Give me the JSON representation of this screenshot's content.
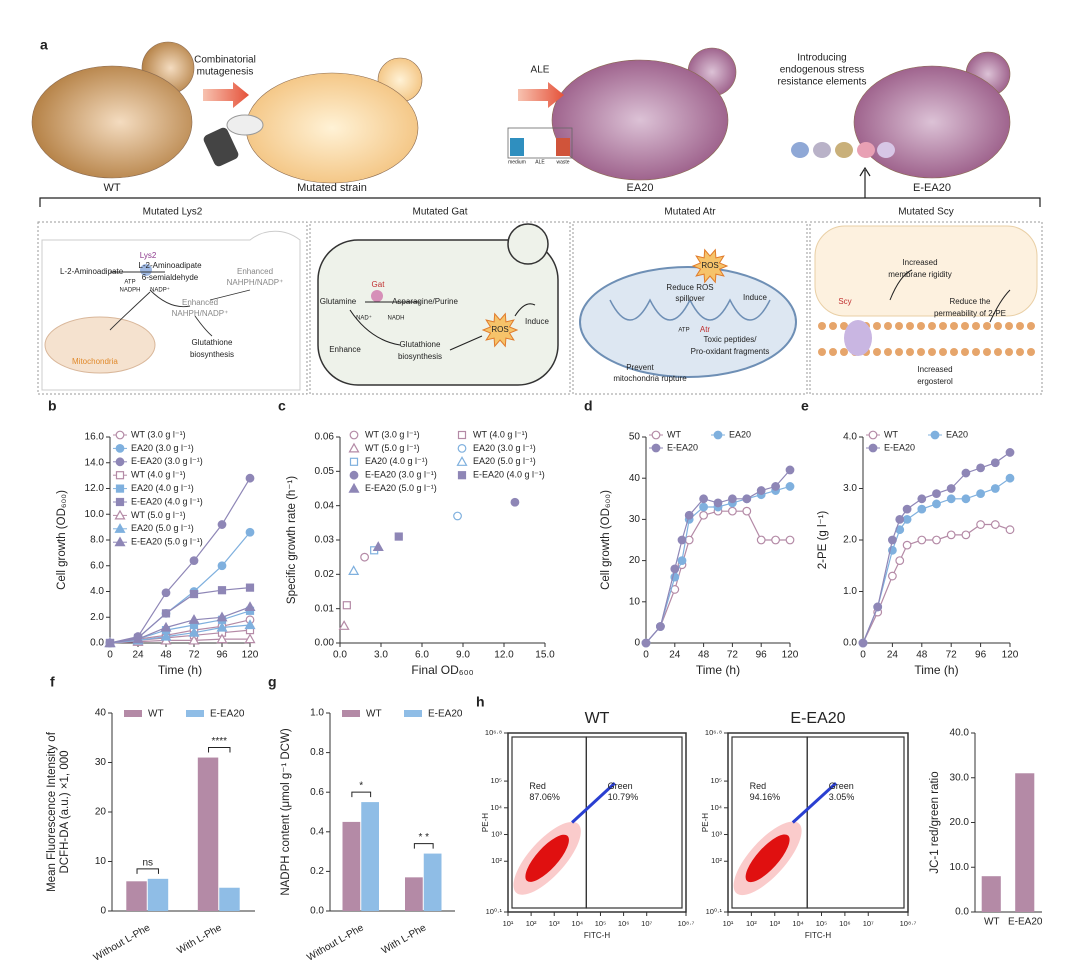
{
  "panel_a": {
    "label": "a",
    "strains": [
      "WT",
      "Mutated strain",
      "EA20",
      "E-EA20"
    ],
    "steps": [
      [
        "Combinatorial",
        "mutagenesis"
      ],
      [
        "ALE"
      ],
      [
        "Introducing",
        "endogenous stress",
        "resistance elements"
      ]
    ],
    "ale_device": [
      "medium",
      "ALE",
      "waste"
    ],
    "boxes": [
      {
        "title": "Mutated Lys2",
        "labels": [
          "Lys2",
          "L-2-Aminoadipate",
          "L-2-Aminoadipate",
          "6-semialdehyde",
          "ATP",
          "NADPH",
          "NADP⁺",
          "Enhanced",
          "NAHPH/NADP⁺",
          "Enhanced",
          "NAHPH/NADP⁺",
          "Mitochondria",
          "Glutathione",
          "biosynthesis"
        ]
      },
      {
        "title": "Mutated Gat",
        "labels": [
          "Gat",
          "Glutamine",
          "Asparagine/Purine",
          "NAD⁺",
          "NADH",
          "Enhance",
          "Glutathione",
          "biosynthesis",
          "ROS",
          "Induce"
        ]
      },
      {
        "title": "Mutated Atr",
        "labels": [
          "ROS",
          "Reduce ROS",
          "spillover",
          "Induce",
          "ATP",
          "Atr",
          "Toxic peptides/",
          "Pro-oxidant fragments",
          "Prevent",
          "mitochondria rupture"
        ]
      },
      {
        "title": "Mutated Scy",
        "labels": [
          "Scy",
          "Increased",
          "membrane rigidity",
          "Reduce the",
          "permeability of 2-PE",
          "Increased",
          "ergosterol"
        ]
      }
    ]
  },
  "chart_data": [
    {
      "type": "line",
      "panel": "b",
      "xlabel": "Time (h)",
      "ylabel": "Cell growth (OD₆₀₀)",
      "x": [
        0,
        24,
        48,
        72,
        96,
        120
      ],
      "xlim": [
        0,
        120
      ],
      "xticks": [
        0,
        24,
        48,
        72,
        96,
        120
      ],
      "ylim": [
        0,
        16
      ],
      "yticks": [
        {
          "value": 0,
          "label": "0.0"
        },
        {
          "value": 2,
          "label": "2.0"
        },
        {
          "value": 4,
          "label": "4.0"
        },
        {
          "value": 6,
          "label": "6.0"
        },
        {
          "value": 8,
          "label": "8.0"
        },
        {
          "value": 10,
          "label": "10.0"
        },
        {
          "value": 12,
          "label": "12.0"
        },
        {
          "value": 14,
          "label": "14.0"
        },
        {
          "value": 16,
          "label": "16.0"
        }
      ],
      "legend": "upper left",
      "legend_columns": 1,
      "series": [
        {
          "name": "WT (3.0 g l⁻¹)",
          "color": "#b48aa6",
          "marker": "circle",
          "hollow": true,
          "values": [
            0,
            0.3,
            0.6,
            1.0,
            1.3,
            1.8
          ]
        },
        {
          "name": "EA20 (3.0 g l⁻¹)",
          "color": "#7fb0de",
          "marker": "circle",
          "hollow": false,
          "values": [
            0,
            0.4,
            2.3,
            4.0,
            6.0,
            8.6
          ]
        },
        {
          "name": "E-EA20 (3.0 g l⁻¹)",
          "color": "#8e86b6",
          "marker": "circle",
          "hollow": false,
          "values": [
            0,
            0.5,
            3.9,
            6.4,
            9.2,
            12.8
          ]
        },
        {
          "name": "WT (4.0 g l⁻¹)",
          "color": "#b48aa6",
          "marker": "square",
          "hollow": true,
          "values": [
            0,
            0.2,
            0.4,
            0.6,
            0.8,
            1.0
          ]
        },
        {
          "name": "EA20 (4.0 g l⁻¹)",
          "color": "#7fb0de",
          "marker": "square",
          "hollow": false,
          "values": [
            0,
            0.3,
            1.0,
            1.4,
            1.8,
            2.5
          ]
        },
        {
          "name": "E-EA20 (4.0 g l⁻¹)",
          "color": "#8e86b6",
          "marker": "square",
          "hollow": false,
          "values": [
            0,
            0.4,
            2.3,
            3.8,
            4.1,
            4.3
          ]
        },
        {
          "name": "WT (5.0 g l⁻¹)",
          "color": "#b48aa6",
          "marker": "triangle",
          "hollow": true,
          "values": [
            0,
            0.1,
            0.2,
            0.2,
            0.3,
            0.3
          ]
        },
        {
          "name": "EA20 (5.0 g l⁻¹)",
          "color": "#7fb0de",
          "marker": "triangle",
          "hollow": false,
          "values": [
            0,
            0.2,
            0.5,
            0.8,
            1.2,
            1.4
          ]
        },
        {
          "name": "E-EA20 (5.0 g l⁻¹)",
          "color": "#8e86b6",
          "marker": "triangle",
          "hollow": false,
          "values": [
            0,
            0.3,
            1.2,
            1.8,
            2.0,
            2.8
          ]
        }
      ]
    },
    {
      "type": "scatter",
      "panel": "c",
      "xlabel": "Final OD₆₀₀",
      "ylabel": "Specific growth rate (h⁻¹)",
      "xlim": [
        0,
        15
      ],
      "xticks": [
        {
          "value": 0,
          "label": "0.0"
        },
        {
          "value": 3,
          "label": "3.0"
        },
        {
          "value": 6,
          "label": "6.0"
        },
        {
          "value": 9,
          "label": "9.0"
        },
        {
          "value": 12,
          "label": "12.0"
        },
        {
          "value": 15,
          "label": "15.0"
        }
      ],
      "ylim": [
        0,
        0.06
      ],
      "yticks": [
        {
          "value": 0,
          "label": "0.00"
        },
        0.01,
        0.02,
        0.03,
        0.04,
        0.05,
        0.06
      ],
      "legend": "upper right",
      "legend_columns": 2,
      "series": [
        {
          "name": "WT (3.0 g l⁻¹)",
          "color": "#b48aa6",
          "marker": "circle",
          "hollow": true,
          "x": [
            1.8
          ],
          "values": [
            0.025
          ]
        },
        {
          "name": "WT (4.0 g l⁻¹)",
          "color": "#b48aa6",
          "marker": "square",
          "hollow": true,
          "x": [
            0.5
          ],
          "values": [
            0.011
          ]
        },
        {
          "name": "WT (5.0 g l⁻¹)",
          "color": "#b48aa6",
          "marker": "triangle",
          "hollow": true,
          "x": [
            0.3
          ],
          "values": [
            0.005
          ]
        },
        {
          "name": "EA20 (3.0 g l⁻¹)",
          "color": "#7fb0de",
          "marker": "circle",
          "hollow": true,
          "x": [
            8.6
          ],
          "values": [
            0.037
          ]
        },
        {
          "name": "EA20 (4.0 g l⁻¹)",
          "color": "#7fb0de",
          "marker": "square",
          "hollow": true,
          "x": [
            2.5
          ],
          "values": [
            0.027
          ]
        },
        {
          "name": "EA20 (5.0 g l⁻¹)",
          "color": "#7fb0de",
          "marker": "triangle",
          "hollow": true,
          "x": [
            1.0
          ],
          "values": [
            0.021
          ]
        },
        {
          "name": "E-EA20 (3.0 g l⁻¹)",
          "color": "#8e86b6",
          "marker": "circle",
          "hollow": false,
          "x": [
            12.8
          ],
          "values": [
            0.041
          ]
        },
        {
          "name": "E-EA20 (4.0 g l⁻¹)",
          "color": "#8e86b6",
          "marker": "square",
          "hollow": false,
          "x": [
            4.3
          ],
          "values": [
            0.031
          ]
        },
        {
          "name": "E-EA20 (5.0 g l⁻¹)",
          "color": "#8e86b6",
          "marker": "triangle",
          "hollow": false,
          "x": [
            2.8
          ],
          "values": [
            0.028
          ]
        }
      ]
    },
    {
      "type": "line",
      "panel": "d",
      "xlabel": "Time (h)",
      "ylabel": "Cell growth (OD₆₀₀)",
      "x": [
        0,
        12,
        24,
        30,
        36,
        48,
        60,
        72,
        84,
        96,
        108,
        120
      ],
      "xlim": [
        0,
        120
      ],
      "xticks": [
        0,
        24,
        48,
        72,
        96,
        120
      ],
      "ylim": [
        0,
        50
      ],
      "yticks": [
        0,
        10,
        20,
        30,
        40,
        50
      ],
      "legend": "upper left",
      "legend_columns": 2,
      "series": [
        {
          "name": "WT",
          "color": "#b48aa6",
          "marker": "circle",
          "hollow": true,
          "values": [
            0,
            4,
            13,
            19,
            25,
            31,
            32,
            32,
            32,
            25,
            25,
            25
          ]
        },
        {
          "name": "EA20",
          "color": "#7fb0de",
          "marker": "circle",
          "hollow": false,
          "values": [
            0,
            4,
            16,
            20,
            30,
            33,
            33,
            34,
            35,
            36,
            37,
            38
          ]
        },
        {
          "name": "E-EA20",
          "color": "#8e86b6",
          "marker": "circle",
          "hollow": false,
          "values": [
            0,
            4,
            18,
            25,
            31,
            35,
            34,
            35,
            35,
            37,
            38,
            42
          ]
        }
      ]
    },
    {
      "type": "line",
      "panel": "e",
      "xlabel": "Time (h)",
      "ylabel": "2-PE (g l⁻¹)",
      "x": [
        0,
        12,
        24,
        30,
        36,
        48,
        60,
        72,
        84,
        96,
        108,
        120
      ],
      "xlim": [
        0,
        120
      ],
      "xticks": [
        0,
        24,
        48,
        72,
        96,
        120
      ],
      "ylim": [
        0,
        4
      ],
      "yticks": [
        {
          "value": 0,
          "label": "0.0"
        },
        {
          "value": 1,
          "label": "1.0"
        },
        {
          "value": 2,
          "label": "2.0"
        },
        {
          "value": 3,
          "label": "3.0"
        },
        {
          "value": 4,
          "label": "4.0"
        }
      ],
      "legend": "upper left",
      "legend_columns": 2,
      "series": [
        {
          "name": "WT",
          "color": "#b48aa6",
          "marker": "circle",
          "hollow": true,
          "values": [
            0,
            0.6,
            1.3,
            1.6,
            1.9,
            2.0,
            2.0,
            2.1,
            2.1,
            2.3,
            2.3,
            2.2
          ]
        },
        {
          "name": "EA20",
          "color": "#7fb0de",
          "marker": "circle",
          "hollow": false,
          "values": [
            0,
            0.7,
            1.8,
            2.2,
            2.4,
            2.6,
            2.7,
            2.8,
            2.8,
            2.9,
            3.0,
            3.2
          ]
        },
        {
          "name": "E-EA20",
          "color": "#8e86b6",
          "marker": "circle",
          "hollow": false,
          "values": [
            0,
            0.7,
            2.0,
            2.4,
            2.6,
            2.8,
            2.9,
            3.0,
            3.3,
            3.4,
            3.5,
            3.7
          ]
        }
      ]
    },
    {
      "type": "bar",
      "panel": "f",
      "ylabel": [
        "Mean Fluorescence Intensity of",
        "DCFH-DA (a.u.) ×1, 000"
      ],
      "categories": [
        "Without L-Phe",
        "With L-Phe"
      ],
      "ylim": [
        0,
        40
      ],
      "yticks": [
        0,
        10,
        20,
        30,
        40
      ],
      "legend": "top",
      "annotations": [
        "ns",
        "****"
      ],
      "series": [
        {
          "name": "WT",
          "color": "#b48aa6",
          "values": [
            6,
            31
          ]
        },
        {
          "name": "E-EA20",
          "color": "#8fbde6",
          "values": [
            6.5,
            4.7
          ]
        }
      ]
    },
    {
      "type": "bar",
      "panel": "g",
      "ylabel": [
        "NADPH content (μmol g⁻¹ DCW)"
      ],
      "categories": [
        "Without L-Phe",
        "With L-Phe"
      ],
      "ylim": [
        0,
        1
      ],
      "yticks": [
        {
          "value": 0,
          "label": "0.0"
        },
        0.2,
        0.4,
        0.6,
        0.8,
        {
          "value": 1,
          "label": "1.0"
        }
      ],
      "legend": "top",
      "annotations": [
        "*",
        "* *"
      ],
      "series": [
        {
          "name": "WT",
          "color": "#b48aa6",
          "values": [
            0.45,
            0.17
          ]
        },
        {
          "name": "E-EA20",
          "color": "#8fbde6",
          "values": [
            0.55,
            0.29
          ]
        }
      ]
    },
    {
      "type": "flow",
      "panel": "h",
      "title": "WT",
      "xlabel": "FITC-H",
      "ylabel": "PE-H",
      "xscale": "log",
      "yscale": "log",
      "xlim": [
        10,
        501187234
      ],
      "xticks": [
        {
          "value": 10,
          "label": "10¹"
        },
        {
          "value": 100,
          "label": "10²"
        },
        {
          "value": 1000,
          "label": "10³"
        },
        {
          "value": 10000,
          "label": "10⁴"
        },
        {
          "value": 100000,
          "label": "10⁵"
        },
        {
          "value": 1000000,
          "label": "10⁶"
        },
        {
          "value": 10000000,
          "label": "10⁷"
        },
        {
          "value": 501187234,
          "label": "10⁸·⁷"
        }
      ],
      "ylim": [
        1.2589,
        6309573
      ],
      "yticks": [
        {
          "value": 1.2589,
          "label": "10⁰·¹"
        },
        {
          "value": 100,
          "label": "10²"
        },
        {
          "value": 1000,
          "label": "10³"
        },
        {
          "value": 10000,
          "label": "10⁴"
        },
        {
          "value": 100000,
          "label": "10⁵"
        },
        {
          "value": 6309573,
          "label": "10⁶·⁸"
        }
      ],
      "gates": [
        {
          "name": "Red",
          "label": "87.06%"
        },
        {
          "name": "Green",
          "label": "10.79%"
        }
      ]
    },
    {
      "type": "flow",
      "title": "E-EA20",
      "xlabel": "FITC-H",
      "ylabel": "PE-H",
      "xscale": "log",
      "yscale": "log",
      "xlim": [
        10,
        501187234
      ],
      "xticks": [
        {
          "value": 10,
          "label": "10¹"
        },
        {
          "value": 100,
          "label": "10²"
        },
        {
          "value": 1000,
          "label": "10³"
        },
        {
          "value": 10000,
          "label": "10⁴"
        },
        {
          "value": 100000,
          "label": "10⁵"
        },
        {
          "value": 1000000,
          "label": "10⁶"
        },
        {
          "value": 10000000,
          "label": "10⁷"
        },
        {
          "value": 501187234,
          "label": "10⁸·⁷"
        }
      ],
      "ylim": [
        1.2589,
        6309573
      ],
      "yticks": [
        {
          "value": 1.2589,
          "label": "10⁰·¹"
        },
        {
          "value": 100,
          "label": "10²"
        },
        {
          "value": 1000,
          "label": "10³"
        },
        {
          "value": 10000,
          "label": "10⁴"
        },
        {
          "value": 100000,
          "label": "10⁵"
        },
        {
          "value": 6309573,
          "label": "10⁶·⁸"
        }
      ],
      "gates": [
        {
          "name": "Red",
          "label": "94.16%"
        },
        {
          "name": "Green",
          "label": "3.05%"
        }
      ]
    },
    {
      "type": "bar",
      "ylabel": [
        "JC-1 red/green ratio"
      ],
      "categories": [
        "WT",
        "E-EA20"
      ],
      "values": [
        8,
        31
      ],
      "color": "#b48aa6",
      "ylim": [
        0,
        40
      ],
      "yticks": [
        {
          "value": 0,
          "label": "0.0"
        },
        {
          "value": 10,
          "label": "10.0"
        },
        {
          "value": 20,
          "label": "20.0"
        },
        {
          "value": 30,
          "label": "30.0"
        },
        {
          "value": 40,
          "label": "40.0"
        }
      ]
    }
  ]
}
